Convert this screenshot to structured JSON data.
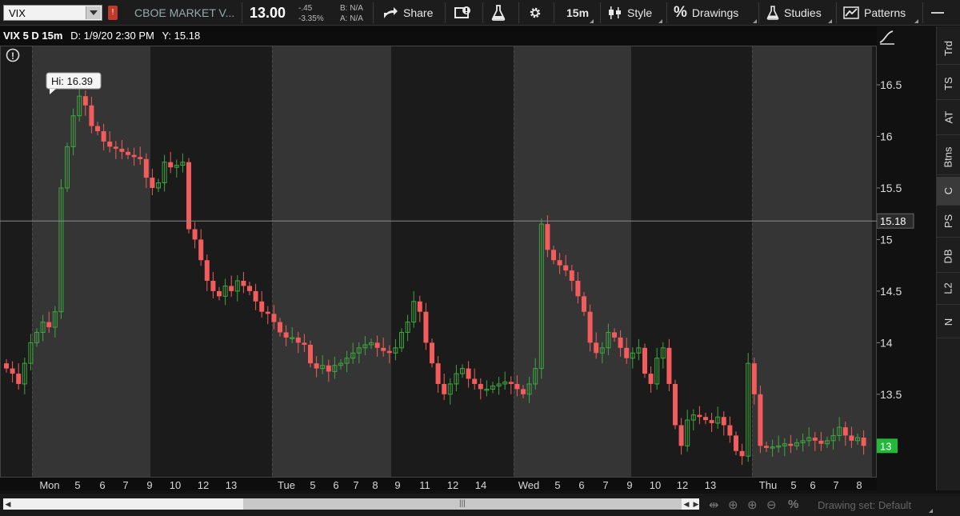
{
  "toolbar": {
    "symbol": "VIX",
    "alert_badge": "!",
    "company": "CBOE MARKET V...",
    "last_price": "13.00",
    "net_change": "-.45",
    "pct_change": "-3.35%",
    "bid": "B: N/A",
    "ask": "A: N/A",
    "share_label": "Share",
    "timeframe": "15m",
    "style_label": "Style",
    "drawings_label": "Drawings",
    "studies_label": "Studies",
    "patterns_label": "Patterns"
  },
  "header": {
    "title": "VIX 5 D 15m",
    "date_readout": "D: 1/9/20 2:30 PM",
    "y_readout": "Y: 15.18"
  },
  "hi_bubble": "Hi: 16.39",
  "crosshair_label": "15.18",
  "last_label": "13",
  "right_tabs": [
    "Trd",
    "TS",
    "AT",
    "Btns",
    "C",
    "PS",
    "DB",
    "L2",
    "N"
  ],
  "active_tab": "C",
  "bottom": {
    "drawing_set": "Drawing set: Default"
  },
  "colors": {
    "up": "#3fa63f",
    "down": "#f25c5c",
    "day_band": "#353535",
    "night_band": "#1b1b1b",
    "last_label_bg": "#22b83a"
  },
  "chart_data": {
    "type": "candlestick",
    "crosshair_y": 15.18,
    "last_value": 13,
    "ylim": [
      12.7,
      16.88
    ],
    "y_ticks": [
      13.5,
      14,
      14.5,
      15,
      15.5,
      16,
      16.5
    ],
    "x_labels": [
      "Mon",
      "5",
      "6",
      "7",
      "9",
      "10",
      "12",
      "13",
      "Tue",
      "5",
      "6",
      "7",
      "8",
      "9",
      "11",
      "12",
      "14",
      "Wed",
      "5",
      "6",
      "7",
      "9",
      "10",
      "12",
      "13",
      "Thu",
      "5",
      "6",
      "7",
      "8"
    ],
    "session_closes": [
      15.7,
      14.02,
      13.85,
      13.45
    ],
    "series": [
      {
        "name": "",
        "values": [
          13.75,
          13.7,
          13.6,
          13.8,
          14.0,
          14.1,
          14.2,
          14.15,
          14.3,
          15.5,
          15.9,
          16.2,
          16.39,
          16.3,
          16.1,
          16.05,
          15.95,
          15.9,
          15.88,
          15.85,
          15.82,
          15.8,
          15.78,
          15.6,
          15.5,
          15.55,
          15.75,
          15.7,
          15.72,
          15.75,
          15.1,
          15.0,
          14.8,
          14.6,
          14.5,
          14.45,
          14.55,
          14.5,
          14.6,
          14.55,
          14.5,
          14.4,
          14.3,
          14.28,
          14.2,
          14.1,
          14.05,
          14.05,
          14.0,
          13.98,
          13.8,
          13.75,
          13.78,
          13.72,
          13.78,
          13.8,
          13.85,
          13.9,
          13.95,
          13.98,
          14.0,
          13.95,
          13.92,
          13.9,
          13.95,
          14.1,
          14.2,
          14.4,
          14.3,
          14.0,
          13.8,
          13.6,
          13.5,
          13.6,
          13.7,
          13.75,
          13.65,
          13.6,
          13.55,
          13.55,
          13.58,
          13.6,
          13.62,
          13.6,
          13.55,
          13.5,
          13.6,
          13.75,
          15.15,
          14.9,
          14.8,
          14.75,
          14.7,
          14.6,
          14.45,
          14.3,
          14.0,
          13.9,
          13.95,
          14.1,
          14.05,
          13.95,
          13.85,
          13.9,
          13.95,
          13.7,
          13.6,
          13.85,
          13.95,
          13.6,
          13.2,
          13.0,
          13.25,
          13.3,
          13.28,
          13.25,
          13.22,
          13.28,
          13.2,
          13.1,
          12.95,
          12.9,
          13.8,
          13.5,
          13.0,
          12.98,
          12.99,
          13.0,
          13.02,
          13.0,
          13.03,
          13.05,
          13.08,
          13.05,
          13.02,
          13.05,
          13.1,
          13.18,
          13.1,
          13.05,
          13.08,
          13.0
        ]
      }
    ]
  }
}
